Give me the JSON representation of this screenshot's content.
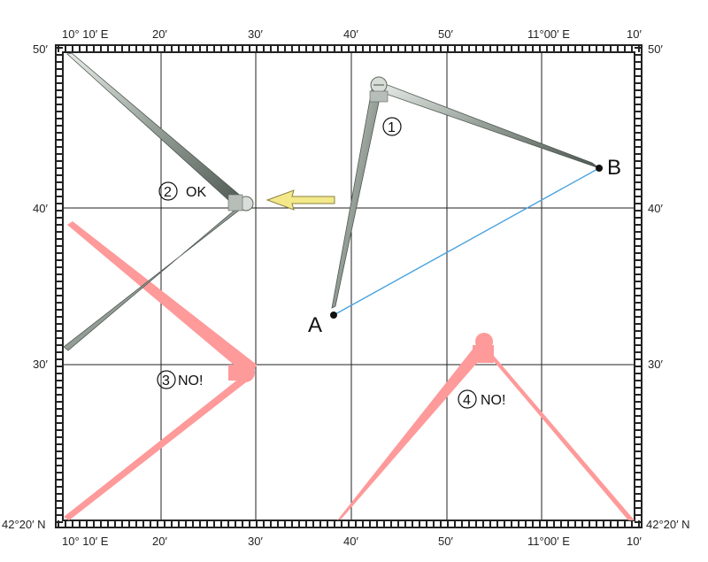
{
  "map": {
    "top_labels": [
      "10° 10′ E",
      "20′",
      "30′",
      "40′",
      "50′",
      "11°00′ E",
      "10′"
    ],
    "bottom_labels": [
      "10° 10′ E",
      "20′",
      "30′",
      "40′",
      "50′",
      "11°00′ E",
      "10′"
    ],
    "left_labels": [
      "50′",
      "40′",
      "30′",
      "42°20′ N"
    ],
    "right_labels": [
      "50′",
      "40′",
      "30′",
      "42°20′ N"
    ],
    "points": [
      {
        "name": "A"
      },
      {
        "name": "B"
      }
    ],
    "annotations": [
      {
        "number": "1",
        "text": ""
      },
      {
        "number": "2",
        "text": "OK"
      },
      {
        "number": "3",
        "text": "NO!"
      },
      {
        "number": "4",
        "text": "NO!"
      }
    ],
    "colors": {
      "grid": "#222222",
      "measure_line": "#4aa3df",
      "divider_metal": "#9aa39d",
      "wrong_divider": "#ff9a9a",
      "arrow": "#f3e88a"
    }
  }
}
